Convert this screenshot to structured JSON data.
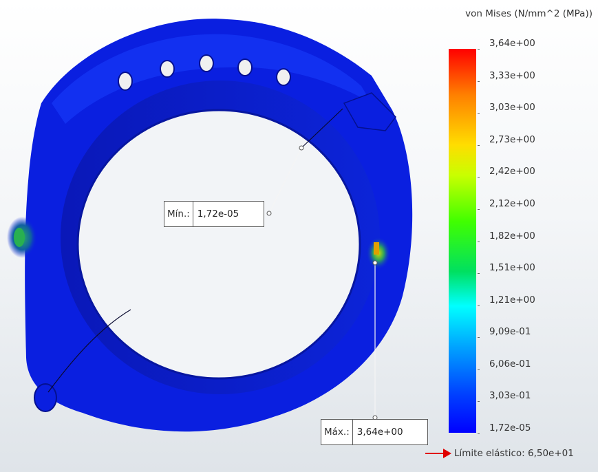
{
  "legend": {
    "title": "von Mises (N/mm^2 (MPa))",
    "ticks": [
      "3,64e+00",
      "3,33e+00",
      "3,03e+00",
      "2,73e+00",
      "2,42e+00",
      "2,12e+00",
      "1,82e+00",
      "1,51e+00",
      "1,21e+00",
      "9,09e-01",
      "6,06e-01",
      "3,03e-01",
      "1,72e-05"
    ],
    "colors": [
      "#ff0000",
      "#ff8000",
      "#ffdd00",
      "#40ff00",
      "#00ffff",
      "#0000ff"
    ]
  },
  "probes": {
    "min": {
      "label": "Mín.:",
      "value": "1,72e-05"
    },
    "max": {
      "label": "Máx.:",
      "value": "3,64e+00"
    }
  },
  "yield": {
    "text": "Límite elástico: 6,50e+01"
  },
  "model": {
    "base_color": "#0a1fe0"
  }
}
